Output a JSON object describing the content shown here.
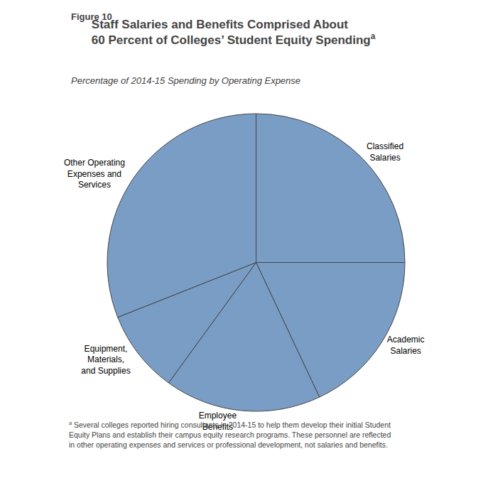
{
  "chart_data": {
    "type": "pie",
    "figure_label": "Figure 10",
    "title": "Staff Salaries and Benefits Comprised About\n60 Percent of Colleges’ Student Equity Spending",
    "title_superscript": "a",
    "subtitle": "Percentage of 2014-15 Spending by Operating Expense",
    "categories": [
      "Classified\nSalaries",
      "Academic\nSalaries",
      "Employee\nBenefits",
      "Equipment,\nMaterials,\nand Supplies",
      "Other Operating\nExpenses and\nServices"
    ],
    "values": [
      25,
      18,
      17,
      9,
      31
    ],
    "color": "#7a9dc6",
    "legend": false,
    "footnote_marker": "a",
    "footnote": "Several colleges reported hiring consultants in 2014-15 to help them develop their initial Student\nEquity Plans and establish their campus equity research programs. These personnel are reflected\nin other operating expenses and services or professional development, not salaries and benefits."
  }
}
